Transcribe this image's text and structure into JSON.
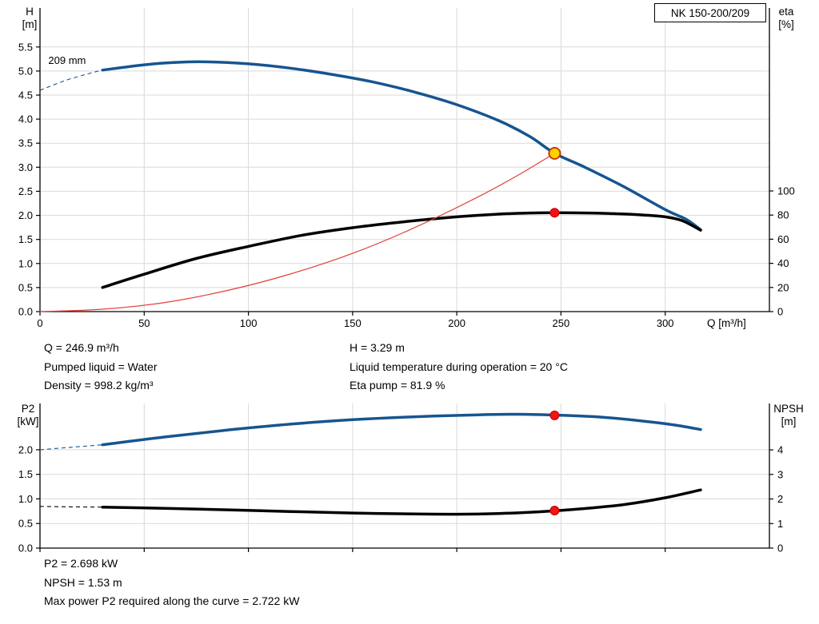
{
  "info": {
    "top_left": [
      "Q = 246.9 m³/h",
      "Pumped liquid = Water",
      "Density = 998.2 kg/m³"
    ],
    "top_right": [
      "H = 3.29 m",
      "Liquid temperature during operation = 20 °C",
      "Eta pump = 81.9 %"
    ],
    "bottom": [
      "P2 = 2.698 kW",
      "NPSH = 1.53 m",
      "Max power P2 required along the curve = 2.722 kW"
    ]
  },
  "chart_data": [
    {
      "type": "line",
      "name": "head-eta-chart",
      "title": "NK 150-200/209",
      "x_axis": {
        "label": "Q [m³/h]",
        "min": 0,
        "max": 350,
        "ticks": [
          0,
          50,
          100,
          150,
          200,
          250,
          300
        ],
        "tick_labels": [
          "0",
          "50",
          "100",
          "150",
          "200",
          "250",
          "300"
        ]
      },
      "y_left": {
        "label_lines": [
          "H",
          "[m]"
        ],
        "min": 0,
        "max": 6.31,
        "ticks": [
          0,
          0.5,
          1,
          1.5,
          2,
          2.5,
          3,
          3.5,
          4,
          4.5,
          5,
          5.5
        ],
        "tick_labels": [
          "0.0",
          "0.5",
          "1.0",
          "1.5",
          "2.0",
          "2.5",
          "3.0",
          "3.5",
          "4.0",
          "4.5",
          "5.0",
          "5.5"
        ]
      },
      "y_right": {
        "label_lines": [
          "eta",
          "[%]"
        ],
        "min": 0,
        "max": 251.6,
        "ticks": [
          0,
          20,
          40,
          60,
          80,
          100
        ],
        "tick_labels": [
          "0",
          "20",
          "40",
          "60",
          "80",
          "100"
        ]
      },
      "annotations": [
        {
          "text": "209 mm",
          "x": 4,
          "y": 5.15,
          "axis": "left"
        }
      ],
      "series": [
        {
          "name": "head-curve",
          "axis": "left",
          "color": "#16558f",
          "width": 3.5,
          "lead_dash": [
            [
              0,
              4.6
            ],
            [
              12,
              4.8
            ],
            [
              22,
              4.93
            ],
            [
              30,
              5.02
            ]
          ],
          "points": [
            [
              30,
              5.02
            ],
            [
              50,
              5.13
            ],
            [
              65,
              5.18
            ],
            [
              80,
              5.19
            ],
            [
              100,
              5.15
            ],
            [
              120,
              5.06
            ],
            [
              140,
              4.93
            ],
            [
              160,
              4.77
            ],
            [
              180,
              4.56
            ],
            [
              200,
              4.3
            ],
            [
              220,
              3.97
            ],
            [
              235,
              3.64
            ],
            [
              246.9,
              3.29
            ],
            [
              260,
              3.03
            ],
            [
              280,
              2.6
            ],
            [
              300,
              2.12
            ],
            [
              310,
              1.92
            ],
            [
              317,
              1.7
            ]
          ]
        },
        {
          "name": "efficiency-curve",
          "axis": "right",
          "color": "#000000",
          "width": 3.5,
          "points": [
            [
              30,
              20
            ],
            [
              50,
              31
            ],
            [
              75,
              44
            ],
            [
              100,
              54
            ],
            [
              125,
              63
            ],
            [
              150,
              69.5
            ],
            [
              175,
              74.5
            ],
            [
              200,
              78.5
            ],
            [
              220,
              80.8
            ],
            [
              235,
              81.7
            ],
            [
              246.9,
              81.9
            ],
            [
              260,
              81.8
            ],
            [
              275,
              81.2
            ],
            [
              290,
              80
            ],
            [
              300,
              78.5
            ],
            [
              308,
              75.5
            ],
            [
              317,
              67.5
            ]
          ]
        },
        {
          "name": "system-curve",
          "axis": "left",
          "color": "#e0403a",
          "width": 1.2,
          "points": [
            [
              0,
              0
            ],
            [
              30,
              0.05
            ],
            [
              60,
              0.19
            ],
            [
              90,
              0.44
            ],
            [
              120,
              0.78
            ],
            [
              150,
              1.21
            ],
            [
              180,
              1.75
            ],
            [
              210,
              2.38
            ],
            [
              230,
              2.85
            ],
            [
              246.9,
              3.29
            ]
          ]
        }
      ],
      "markers": [
        {
          "name": "duty-point",
          "x": 246.9,
          "y": 3.29,
          "axis": "left",
          "r": 7,
          "fill": "#ffd500",
          "stroke": "#cf3a00",
          "stroke_width": 2,
          "interactable": "true"
        },
        {
          "name": "efficiency-point",
          "x": 246.9,
          "y": 81.9,
          "axis": "right",
          "r": 5.5,
          "fill": "#f01414",
          "stroke": "#c00000",
          "stroke_width": 1,
          "interactable": "false"
        }
      ]
    },
    {
      "type": "line",
      "name": "power-npsh-chart",
      "title": "",
      "x_axis": {
        "label": "",
        "min": 0,
        "max": 350,
        "ticks": [
          0,
          50,
          100,
          150,
          200,
          250,
          300
        ],
        "tick_labels": [
          "",
          "",
          "",
          "",
          "",
          "",
          ""
        ]
      },
      "y_left": {
        "label_lines": [
          "P2",
          "[kW]"
        ],
        "min": 0,
        "max": 2.94,
        "ticks": [
          0,
          0.5,
          1,
          1.5,
          2
        ],
        "tick_labels": [
          "0.0",
          "0.5",
          "1.0",
          "1.5",
          "2.0"
        ]
      },
      "y_right": {
        "label_lines": [
          "NPSH",
          "[m]"
        ],
        "min": 0,
        "max": 5.89,
        "ticks": [
          0,
          1,
          2,
          3,
          4
        ],
        "tick_labels": [
          "0",
          "1",
          "2",
          "3",
          "4"
        ]
      },
      "annotations": [],
      "series": [
        {
          "name": "p2-curve",
          "axis": "left",
          "color": "#16558f",
          "width": 3.5,
          "lead_dash": [
            [
              0,
              2.0
            ],
            [
              15,
              2.05
            ],
            [
              30,
              2.1
            ]
          ],
          "points": [
            [
              30,
              2.1
            ],
            [
              60,
              2.26
            ],
            [
              90,
              2.4
            ],
            [
              120,
              2.52
            ],
            [
              150,
              2.61
            ],
            [
              180,
              2.67
            ],
            [
              210,
              2.71
            ],
            [
              230,
              2.72
            ],
            [
              250,
              2.7
            ],
            [
              270,
              2.66
            ],
            [
              290,
              2.58
            ],
            [
              305,
              2.5
            ],
            [
              317,
              2.41
            ]
          ]
        },
        {
          "name": "npsh-curve",
          "axis": "right",
          "color": "#000000",
          "width": 3.5,
          "lead_dash": [
            [
              0,
              1.7
            ],
            [
              15,
              1.68
            ],
            [
              30,
              1.67
            ]
          ],
          "points": [
            [
              30,
              1.67
            ],
            [
              60,
              1.62
            ],
            [
              90,
              1.56
            ],
            [
              120,
              1.49
            ],
            [
              150,
              1.43
            ],
            [
              180,
              1.39
            ],
            [
              200,
              1.38
            ],
            [
              220,
              1.41
            ],
            [
              240,
              1.48
            ],
            [
              260,
              1.6
            ],
            [
              280,
              1.77
            ],
            [
              300,
              2.05
            ],
            [
              317,
              2.37
            ]
          ]
        }
      ],
      "markers": [
        {
          "name": "p2-point",
          "x": 246.9,
          "y": 2.698,
          "axis": "left",
          "r": 5.5,
          "fill": "#f01414",
          "stroke": "#c00000",
          "stroke_width": 1,
          "interactable": "false"
        },
        {
          "name": "npsh-point",
          "x": 246.9,
          "y": 1.53,
          "axis": "right",
          "r": 5.5,
          "fill": "#f01414",
          "stroke": "#c00000",
          "stroke_width": 1,
          "interactable": "false"
        }
      ]
    }
  ]
}
